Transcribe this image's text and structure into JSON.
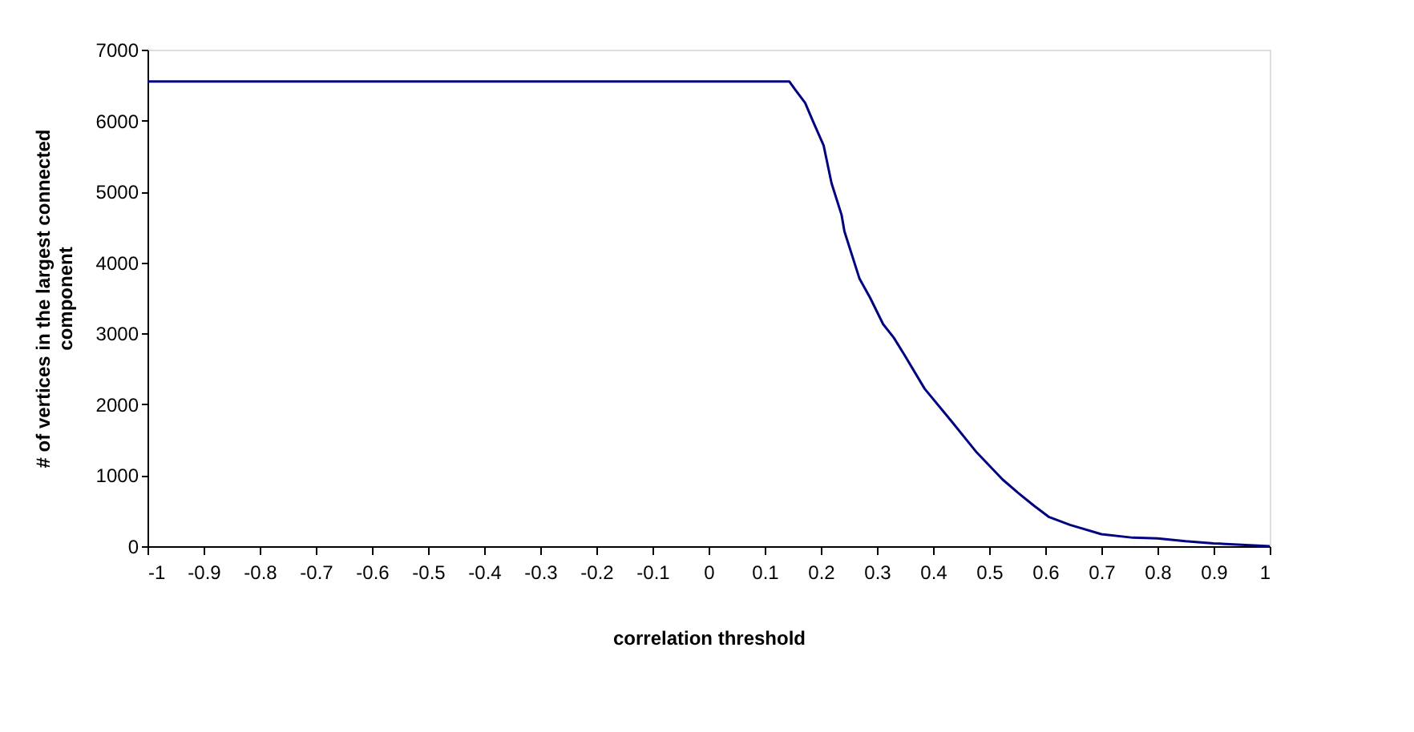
{
  "chart_data": {
    "type": "line",
    "xlabel": "correlation threshold",
    "ylabel": "# of vertices in the largest connected\ncomponent",
    "x": [
      -1,
      0.144,
      0.154,
      0.172,
      0.186,
      0.205,
      0.219,
      0.237,
      0.242,
      0.269,
      0.288,
      0.311,
      0.33,
      0.348,
      0.385,
      0.432,
      0.478,
      0.524,
      0.552,
      0.58,
      0.607,
      0.644,
      0.7,
      0.756,
      0.8,
      0.85,
      0.9,
      0.95,
      1
    ],
    "series": [
      {
        "color": "#000080",
        "values": [
          6550,
          6550,
          6440,
          6250,
          5990,
          5650,
          5120,
          4670,
          4440,
          3770,
          3500,
          3130,
          2940,
          2710,
          2220,
          1770,
          1320,
          940,
          750,
          570,
          410,
          300,
          170,
          120,
          110,
          70,
          40,
          20,
          0
        ]
      }
    ],
    "xlim": [
      -1,
      1
    ],
    "xticks": [
      -1,
      -0.9,
      -0.8,
      -0.7,
      -0.6,
      -0.5,
      -0.4,
      -0.3,
      -0.2,
      -0.1,
      0,
      0.1,
      0.2,
      0.3,
      0.4,
      0.5,
      0.6,
      0.7,
      0.8,
      0.9,
      1
    ],
    "ylim": [
      0,
      7000
    ],
    "yticks": [
      0,
      1000,
      2000,
      3000,
      4000,
      5000,
      6000,
      7000
    ],
    "grid": false,
    "legend": false,
    "marker": "none",
    "line_style": "solid"
  }
}
